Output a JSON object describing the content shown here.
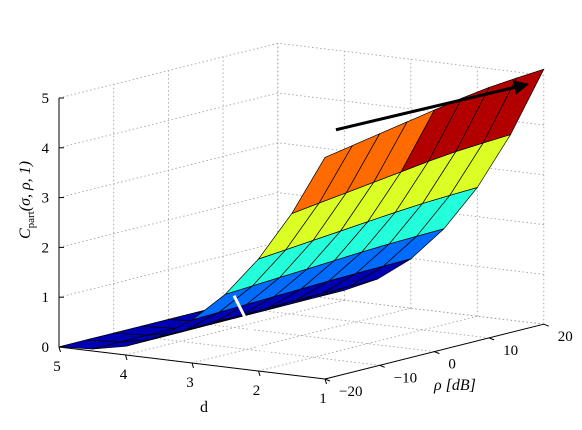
{
  "chart_data": {
    "type": "surface",
    "title": "",
    "zlabel_parts": {
      "c": "C",
      "sub": "part",
      "args": "(σ, ρ, 1)"
    },
    "xlabel": "d",
    "ylabel": "ρ [dB]",
    "x_axis": {
      "range": [
        1,
        5
      ],
      "ticks": [
        1,
        2,
        3,
        4,
        5
      ],
      "tick_labels": [
        "1",
        "2",
        "3",
        "4",
        "5"
      ]
    },
    "y_axis": {
      "range": [
        -20,
        20
      ],
      "ticks": [
        -20,
        -10,
        0,
        10,
        20
      ],
      "tick_labels": [
        "−20",
        "−10",
        "0",
        "10",
        "20"
      ]
    },
    "z_axis": {
      "range": [
        0,
        5
      ],
      "ticks": [
        0,
        1,
        2,
        3,
        4,
        5
      ],
      "tick_labels": [
        "0",
        "1",
        "2",
        "3",
        "4",
        "5"
      ]
    },
    "grid": true,
    "colormap": "jet",
    "x_samples": [
      1,
      1.5,
      2,
      2.5,
      3,
      3.5,
      4,
      4.5,
      5
    ],
    "y_samples": [
      -20,
      -15,
      -10,
      -5,
      0,
      5,
      10,
      15,
      20
    ],
    "z_at_d1": [
      4.45,
      4.55,
      4.65,
      4.75,
      4.85,
      4.95,
      5.03,
      5.08,
      5.12
    ],
    "annotations": [
      {
        "name": "black-arrow",
        "color": "#000000",
        "from": {
          "d": 1,
          "rho": -18,
          "z": 4.95
        },
        "to": {
          "d": 1,
          "rho": 17,
          "z": 4.9
        }
      },
      {
        "name": "white-arrow",
        "color": "#ffffff",
        "from": {
          "d": 5,
          "rho": 12,
          "z": 0.15
        },
        "to": {
          "d": 2,
          "rho": -18,
          "z": 0.05
        }
      }
    ]
  }
}
